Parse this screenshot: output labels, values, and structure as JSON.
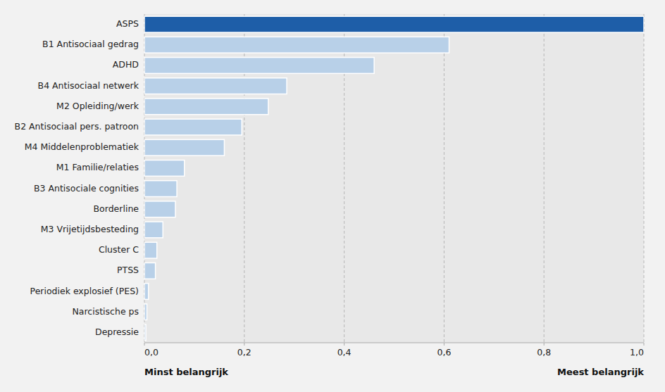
{
  "chart_data": {
    "type": "bar",
    "orientation": "horizontal",
    "categories": [
      "Depressie",
      "Narcistische ps",
      "Periodiek explosief (PES)",
      "PTSS",
      "Cluster C",
      "M3 Vrijetijdsbesteding",
      "Borderline",
      "B3 Antisociale cognities",
      "M1 Familie/relaties",
      "M4 Middelenproblematiek",
      "B2 Antisociaal pers. patroon",
      "M2 Opleiding/werk",
      "B4 Antisociaal netwerk",
      "ADHD",
      "B1 Antisociaal gedrag",
      "ASPS"
    ],
    "values": [
      0.003,
      0.005,
      0.008,
      0.022,
      0.025,
      0.037,
      0.062,
      0.065,
      0.08,
      0.16,
      0.195,
      0.248,
      0.285,
      0.46,
      0.61,
      1.0
    ],
    "colors": [
      "#b8d0e8",
      "#b8d0e8",
      "#b8d0e8",
      "#b8d0e8",
      "#b8d0e8",
      "#b8d0e8",
      "#b8d0e8",
      "#b8d0e8",
      "#b8d0e8",
      "#b8d0e8",
      "#b8d0e8",
      "#b8d0e8",
      "#b8d0e8",
      "#b8d0e8",
      "#b8d0e8",
      "#1e5ea8"
    ],
    "xlim": [
      0,
      1.0
    ],
    "xticks": [
      {
        "value": 0.0,
        "label": "0,0"
      },
      {
        "value": 0.2,
        "label": "0,2"
      },
      {
        "value": 0.4,
        "label": "0,4"
      },
      {
        "value": 0.6,
        "label": "0,6"
      },
      {
        "value": 0.8,
        "label": "0,8"
      },
      {
        "value": 1.0,
        "label": "1,0"
      }
    ],
    "annotations": [
      "Minst belangrijk",
      "Meest belangrijk"
    ],
    "grid": true
  }
}
